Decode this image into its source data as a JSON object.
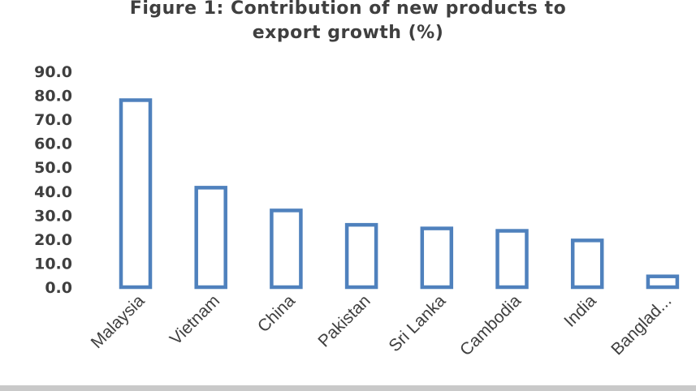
{
  "title_line1": "Figure 1: Contribution of new products to",
  "title_line2": "export growth (%)",
  "colors": {
    "bar_stroke": "#4f81bd",
    "bar_fill": "#ffffff",
    "text": "#3f3f3f"
  },
  "chart_data": {
    "type": "bar",
    "title": "Figure 1: Contribution of new products to export growth (%)",
    "categories": [
      "Malaysia",
      "Vietnam",
      "China",
      "Pakistan",
      "Sri Lanka",
      "Cambodia",
      "India",
      "Banglad..."
    ],
    "values": [
      78.0,
      41.5,
      32.0,
      26.0,
      24.5,
      23.5,
      19.5,
      4.5
    ],
    "yticks": [
      "0.0",
      "10.0",
      "20.0",
      "30.0",
      "40.0",
      "50.0",
      "60.0",
      "70.0",
      "80.0",
      "90.0"
    ],
    "ylim": [
      0,
      90
    ],
    "xlabel": "",
    "ylabel": "",
    "grid": false,
    "legend": "none"
  }
}
